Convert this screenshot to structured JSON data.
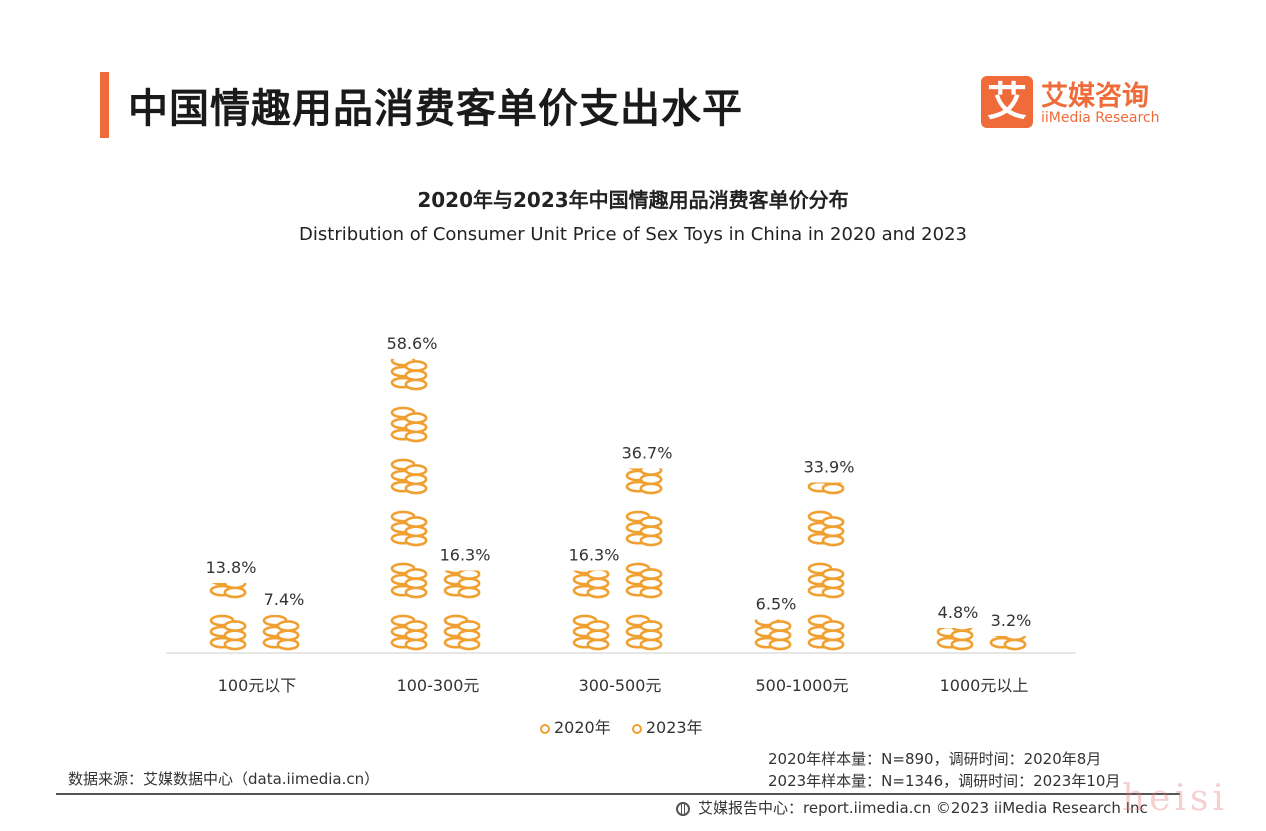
{
  "page_title": "中国情趣用品消费客单价支出水平",
  "colors": {
    "accent": "#ef6b3a",
    "coin": "#f0a030",
    "axis": "#dddddd"
  },
  "logo": {
    "mark": "艾",
    "name_cn": "艾媒咨询",
    "name_en": "iiMedia Research"
  },
  "chart_data": {
    "type": "bar",
    "title": "2020年与2023年中国情趣用品消费客单价分布",
    "subtitle": "Distribution of Consumer Unit Price of Sex Toys in China in 2020 and 2023",
    "categories": [
      "100元以下",
      "100-300元",
      "300-500元",
      "500-1000元",
      "1000元以上"
    ],
    "series": [
      {
        "name": "2020年",
        "values": [
          13.8,
          58.6,
          16.3,
          6.5,
          4.8
        ],
        "labels": [
          "13.8%",
          "58.6%",
          "16.3%",
          "6.5%",
          "4.8%"
        ]
      },
      {
        "name": "2023年",
        "values": [
          7.4,
          16.3,
          36.7,
          33.9,
          3.2
        ],
        "labels": [
          "7.4%",
          "16.3%",
          "36.7%",
          "33.9%",
          "3.2%"
        ]
      }
    ],
    "ylim": [
      0,
      60
    ],
    "icon": "coin-stack-icon",
    "legend_position": "bottom"
  },
  "sample_notes": [
    "2020年样本量：N=890，调研时间：2020年8月",
    "2023年样本量：N=1346，调研时间：2023年10月"
  ],
  "source": "数据来源：艾媒数据中心（data.iimedia.cn）",
  "footer": "艾媒报告中心：report.iimedia.cn ©2023  iiMedia Research  Inc",
  "watermark": "heisi"
}
